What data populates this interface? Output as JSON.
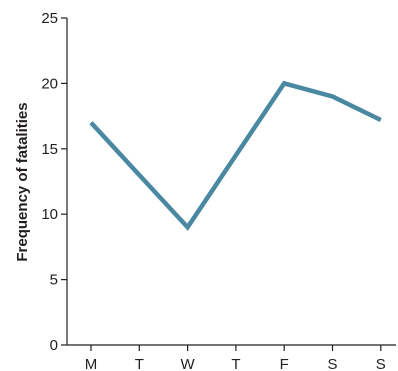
{
  "chart_data": {
    "type": "line",
    "categories": [
      "M",
      "T",
      "W",
      "T",
      "F",
      "S",
      "S"
    ],
    "series": [
      {
        "values": [
          17,
          13,
          9,
          14.5,
          20,
          19,
          17.2
        ],
        "color": "#4a88a2"
      }
    ],
    "ylabel": "Frequency of fatalities",
    "ylim": [
      0,
      25
    ],
    "yticks": [
      0,
      5,
      10,
      15,
      20,
      25
    ],
    "grid": false,
    "legend": "none"
  }
}
